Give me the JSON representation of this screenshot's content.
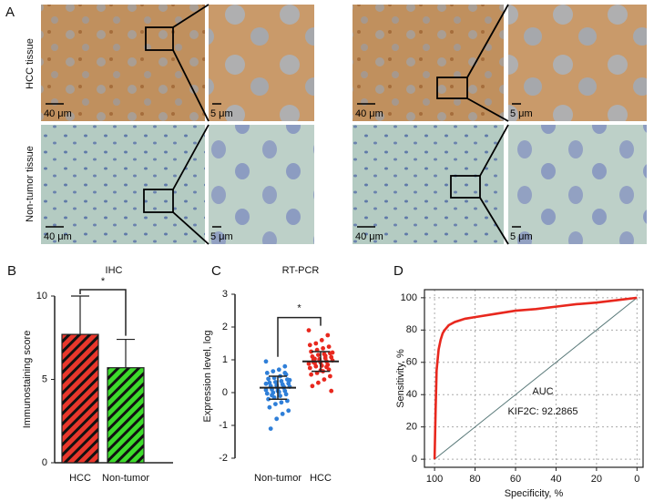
{
  "panel_a": {
    "label": "A",
    "row_labels": [
      "HCC tissue",
      "Non-tumor tissue"
    ],
    "scale_large": "40 μm",
    "scale_small": "5 μm"
  },
  "chart_data": [
    {
      "type": "bar",
      "label": "B",
      "title": "IHC",
      "ylabel": "Immunostaining score",
      "categories": [
        "HCC",
        "Non-tumor"
      ],
      "values": [
        7.7,
        5.7
      ],
      "errors": [
        2.3,
        1.7
      ],
      "colors": [
        "#e8372c",
        "#3ddb2c"
      ],
      "ylim": [
        0,
        10
      ],
      "yticks": [
        0,
        5,
        10
      ],
      "significance": "*"
    },
    {
      "type": "dot",
      "label": "C",
      "title": "RT-PCR",
      "ylabel": "Expression level, log",
      "categories": [
        "Non-tumor",
        "HCC"
      ],
      "groups": [
        {
          "color": "#2f7fd8",
          "mean": 0.15,
          "sd": 0.35,
          "values": [
            0.95,
            0.8,
            0.7,
            0.65,
            0.6,
            0.55,
            0.5,
            0.45,
            0.42,
            0.4,
            0.35,
            0.32,
            0.3,
            0.28,
            0.25,
            0.22,
            0.2,
            0.18,
            0.15,
            0.12,
            0.1,
            0.08,
            0.05,
            0.02,
            0,
            -0.03,
            -0.05,
            -0.1,
            -0.15,
            -0.2,
            -0.25,
            -0.3,
            -0.35,
            -0.45,
            -0.55,
            -0.65,
            -0.8,
            -1.1,
            0.38,
            0.18,
            0.05,
            -0.08,
            0.27,
            0.6
          ]
        },
        {
          "color": "#e8281e",
          "mean": 0.95,
          "sd": 0.3,
          "values": [
            1.9,
            1.75,
            1.6,
            1.5,
            1.45,
            1.4,
            1.35,
            1.3,
            1.25,
            1.2,
            1.18,
            1.15,
            1.1,
            1.08,
            1.05,
            1.02,
            1,
            0.98,
            0.95,
            0.92,
            0.9,
            0.88,
            0.85,
            0.82,
            0.8,
            0.75,
            0.7,
            0.65,
            0.6,
            0.55,
            0.5,
            0.4,
            0.3,
            0.2,
            0.05,
            1.12,
            0.97,
            0.93,
            1.22,
            0.78,
            0.68,
            1.03
          ]
        }
      ],
      "ylim": [
        -2,
        3
      ],
      "yticks": [
        -2,
        -1,
        0,
        1,
        2,
        3
      ],
      "significance": "*"
    },
    {
      "type": "line",
      "label": "D",
      "xlabel": "Specificity, %",
      "ylabel": "Sensitivity, %",
      "xlim": [
        105,
        -3
      ],
      "ylim": [
        -5,
        105
      ],
      "xticks": [
        100,
        80,
        60,
        40,
        20,
        0
      ],
      "yticks": [
        0,
        20,
        40,
        60,
        80,
        100
      ],
      "grid": true,
      "series": [
        {
          "color": "#5a7a7a",
          "x": [
            100,
            0
          ],
          "y": [
            0,
            100
          ]
        },
        {
          "color": "#e8281e",
          "x": [
            100,
            99.5,
            99,
            98,
            97,
            96,
            95,
            93,
            90,
            85,
            80,
            70,
            60,
            50,
            40,
            30,
            20,
            10,
            0
          ],
          "y": [
            0,
            30,
            55,
            68,
            74,
            78,
            80,
            83,
            85,
            87,
            88,
            90,
            92,
            93,
            94.5,
            96,
            97,
            98.5,
            100
          ]
        }
      ],
      "annotation_title": "AUC",
      "annotation": "KIF2C: 92.2865",
      "annotation_color": "#b22222"
    }
  ]
}
